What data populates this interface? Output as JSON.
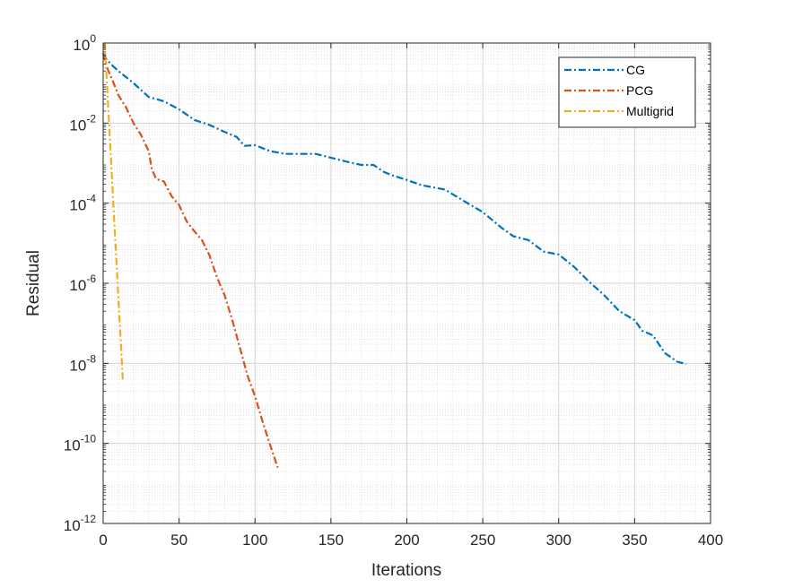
{
  "chart_data": {
    "type": "line",
    "xlabel": "Iterations",
    "ylabel": "Residual",
    "xlim": [
      0,
      400
    ],
    "ylim": [
      1e-12,
      1
    ],
    "yscale": "log",
    "grid": true,
    "minor_grid": true,
    "legend_position": "top-right",
    "x_ticks": [
      {
        "value": 0,
        "label": "0"
      },
      {
        "value": 50,
        "label": "50"
      },
      {
        "value": 100,
        "label": "100"
      },
      {
        "value": 150,
        "label": "150"
      },
      {
        "value": 200,
        "label": "200"
      },
      {
        "value": 250,
        "label": "250"
      },
      {
        "value": 300,
        "label": "300"
      },
      {
        "value": 350,
        "label": "350"
      },
      {
        "value": 400,
        "label": "400"
      }
    ],
    "y_ticks": [
      {
        "exp": 0,
        "base": "10",
        "sup": "0"
      },
      {
        "exp": -2,
        "base": "10",
        "sup": "-2"
      },
      {
        "exp": -4,
        "base": "10",
        "sup": "-4"
      },
      {
        "exp": -6,
        "base": "10",
        "sup": "-6"
      },
      {
        "exp": -8,
        "base": "10",
        "sup": "-8"
      },
      {
        "exp": -10,
        "base": "10",
        "sup": "-10"
      },
      {
        "exp": -12,
        "base": "10",
        "sup": "-12"
      }
    ],
    "series": [
      {
        "name": "CG",
        "color": "#0072BD",
        "x": [
          0,
          2,
          5,
          10,
          20,
          30,
          40,
          50,
          60,
          70,
          80,
          88,
          93,
          100,
          110,
          120,
          140,
          160,
          170,
          178,
          185,
          190,
          200,
          210,
          225,
          240,
          250,
          262,
          270,
          280,
          290,
          300,
          310,
          320,
          330,
          340,
          350,
          355,
          362,
          370,
          378,
          384
        ],
        "y": [
          0.55,
          0.4,
          0.3,
          0.2,
          0.1,
          0.045,
          0.035,
          0.022,
          0.012,
          0.009,
          0.006,
          0.0045,
          0.0027,
          0.0028,
          0.002,
          0.0017,
          0.0017,
          0.0011,
          0.0009,
          0.0009,
          0.0006,
          0.0005,
          0.00038,
          0.00028,
          0.00022,
          0.0001,
          6e-05,
          2.5e-05,
          1.5e-05,
          1.2e-05,
          6.2e-06,
          5.2e-06,
          2.6e-06,
          1.1e-06,
          5e-07,
          2e-07,
          1.2e-07,
          6.5e-08,
          5e-08,
          1.8e-08,
          1.1e-08,
          9.5e-09
        ]
      },
      {
        "name": "PCG",
        "color": "#D95319",
        "x": [
          0,
          3,
          6,
          10,
          15,
          20,
          25,
          30,
          32,
          35,
          40,
          45,
          50,
          55,
          60,
          65,
          70,
          75,
          80,
          85,
          90,
          95,
          100,
          105,
          110,
          115
        ],
        "y": [
          0.55,
          0.22,
          0.12,
          0.05,
          0.025,
          0.01,
          0.005,
          0.002,
          0.0007,
          0.0004,
          0.00035,
          0.00015,
          9e-05,
          3.5e-05,
          2e-05,
          1.2e-05,
          5e-06,
          1.4e-06,
          5e-07,
          1.2e-07,
          2.5e-08,
          5e-09,
          1.5e-09,
          3.5e-10,
          9e-11,
          2.5e-11
        ]
      },
      {
        "name": "Multigrid",
        "color": "#EDB120",
        "x": [
          1,
          2,
          3,
          4,
          5,
          6,
          7,
          8,
          9,
          10,
          11,
          12,
          13
        ],
        "y": [
          1.0,
          0.2,
          0.04,
          0.008,
          0.0015,
          0.0003,
          6e-05,
          1.2e-05,
          2.3e-06,
          4.5e-07,
          9e-08,
          1.8e-08,
          3.5e-09
        ]
      }
    ]
  }
}
